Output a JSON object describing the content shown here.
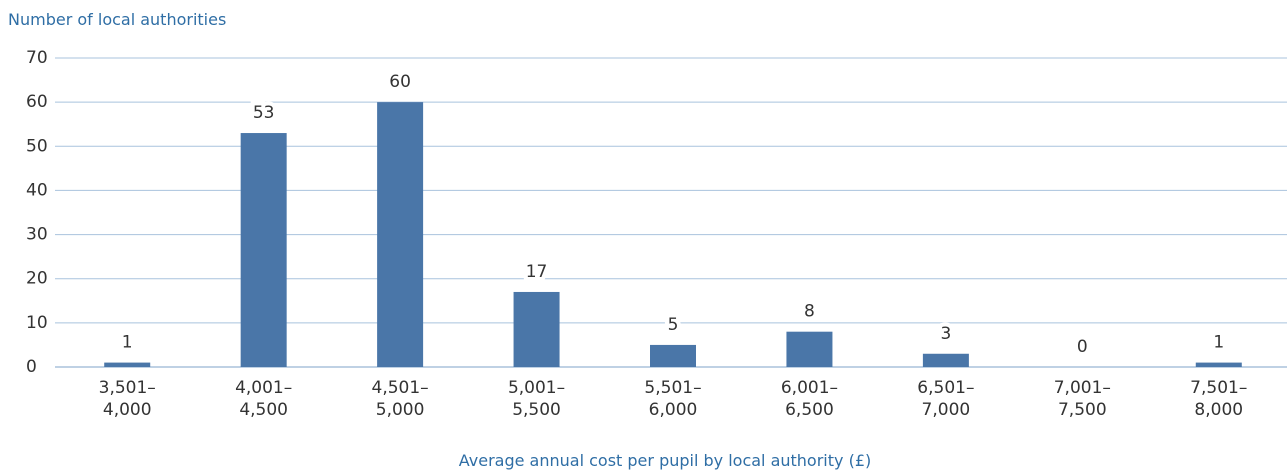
{
  "chart_data": {
    "type": "bar",
    "y_label": "Number of local authorities",
    "x_label": "Average annual cost per pupil by local authority (£)",
    "categories": [
      "3,501–\n4,000",
      "4,001–\n4,500",
      "4,501–\n5,000",
      "5,001–\n5,500",
      "5,501–\n6,000",
      "6,001–\n6,500",
      "6,501–\n7,000",
      "7,001–\n7,500",
      "7,501–\n8,000"
    ],
    "values": [
      1,
      53,
      60,
      17,
      5,
      8,
      3,
      0,
      1
    ],
    "color": "#4a76a8",
    "ylim": [
      0,
      70
    ],
    "yticks": [
      0,
      10,
      20,
      30,
      40,
      50,
      60,
      70
    ],
    "grid": true
  }
}
